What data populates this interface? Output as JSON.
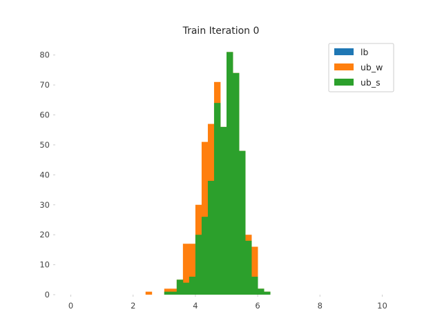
{
  "chart_data": {
    "type": "bar",
    "title": "Train Iteration 0",
    "xlabel": "",
    "ylabel": "",
    "xlim": [
      -0.5,
      10.5
    ],
    "ylim": [
      0,
      85
    ],
    "x_ticks": [
      "0",
      "2",
      "4",
      "6",
      "8",
      "10"
    ],
    "y_ticks": [
      "0",
      "10",
      "20",
      "30",
      "40",
      "50",
      "60",
      "70",
      "80"
    ],
    "grid": false,
    "legend_position": "top-right",
    "bin_width": 0.2,
    "series": [
      {
        "name": "lb",
        "color": "#1f77b4",
        "bins": []
      },
      {
        "name": "ub_w",
        "color": "#ff7f0e",
        "bins": [
          {
            "x": 2.4,
            "y": 1
          },
          {
            "x": 3.0,
            "y": 2
          },
          {
            "x": 3.2,
            "y": 2
          },
          {
            "x": 3.4,
            "y": 5
          },
          {
            "x": 3.6,
            "y": 17
          },
          {
            "x": 3.8,
            "y": 17
          },
          {
            "x": 4.0,
            "y": 30
          },
          {
            "x": 4.2,
            "y": 51
          },
          {
            "x": 4.4,
            "y": 57
          },
          {
            "x": 4.6,
            "y": 71
          },
          {
            "x": 4.8,
            "y": 56
          },
          {
            "x": 5.0,
            "y": 81
          },
          {
            "x": 5.2,
            "y": 74
          },
          {
            "x": 5.4,
            "y": 48
          },
          {
            "x": 5.6,
            "y": 20
          },
          {
            "x": 5.8,
            "y": 16
          },
          {
            "x": 6.0,
            "y": 2
          },
          {
            "x": 6.2,
            "y": 1
          }
        ]
      },
      {
        "name": "ub_s",
        "color": "#2ca02c",
        "bins": [
          {
            "x": 3.0,
            "y": 1
          },
          {
            "x": 3.2,
            "y": 1
          },
          {
            "x": 3.4,
            "y": 5
          },
          {
            "x": 3.6,
            "y": 4
          },
          {
            "x": 3.8,
            "y": 6
          },
          {
            "x": 4.0,
            "y": 20
          },
          {
            "x": 4.2,
            "y": 26
          },
          {
            "x": 4.4,
            "y": 38
          },
          {
            "x": 4.6,
            "y": 64
          },
          {
            "x": 4.8,
            "y": 56
          },
          {
            "x": 5.0,
            "y": 81
          },
          {
            "x": 5.2,
            "y": 74
          },
          {
            "x": 5.4,
            "y": 48
          },
          {
            "x": 5.6,
            "y": 18
          },
          {
            "x": 5.8,
            "y": 6
          },
          {
            "x": 6.0,
            "y": 2
          },
          {
            "x": 6.2,
            "y": 1
          }
        ]
      }
    ]
  }
}
